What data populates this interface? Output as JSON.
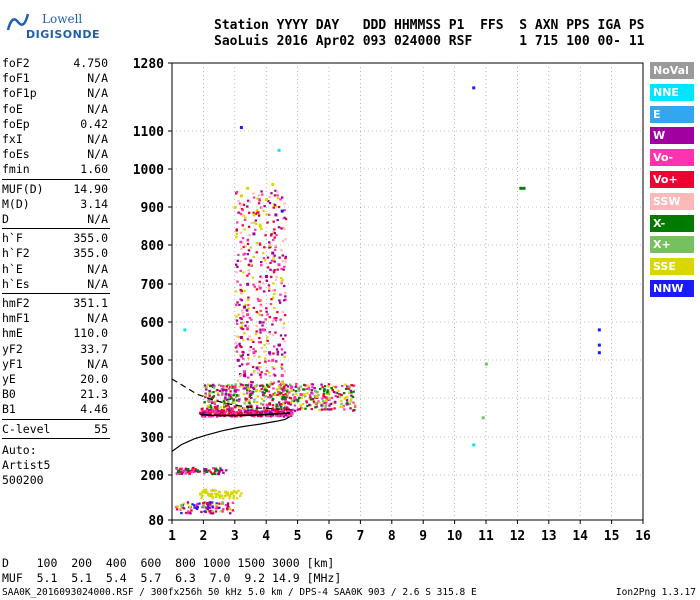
{
  "logo": {
    "line1": "Lowell",
    "line2": "DIGISONDE"
  },
  "header": {
    "line1": "Station YYYY DAY   DDD HHMMSS P1  FFS  S AXN PPS IGA PS",
    "line2": "SaoLuis 2016 Apr02 093 024000 RSF      1 715 100 00- 11"
  },
  "params": [
    {
      "key": "foF2",
      "value": "4.750"
    },
    {
      "key": "foF1",
      "value": "N/A"
    },
    {
      "key": "foF1p",
      "value": "N/A"
    },
    {
      "key": "foE",
      "value": "N/A"
    },
    {
      "key": "foEp",
      "value": "0.42"
    },
    {
      "key": "fxI",
      "value": "N/A"
    },
    {
      "key": "foEs",
      "value": "N/A"
    },
    {
      "key": "fmin",
      "value": "1.60"
    },
    {
      "key": "MUF(D)",
      "value": "14.90"
    },
    {
      "key": "M(D)",
      "value": "3.14"
    },
    {
      "key": "D",
      "value": "N/A"
    },
    {
      "key": "h`F",
      "value": "355.0"
    },
    {
      "key": "h`F2",
      "value": "355.0"
    },
    {
      "key": "h`E",
      "value": "N/A"
    },
    {
      "key": "h`Es",
      "value": "N/A"
    },
    {
      "key": "hmF2",
      "value": "351.1"
    },
    {
      "key": "hmF1",
      "value": "N/A"
    },
    {
      "key": "hmE",
      "value": "110.0"
    },
    {
      "key": "yF2",
      "value": "33.7"
    },
    {
      "key": "yF1",
      "value": "N/A"
    },
    {
      "key": "yE",
      "value": "20.0"
    },
    {
      "key": "B0",
      "value": "21.3"
    },
    {
      "key": "B1",
      "value": "4.46"
    },
    {
      "key": "C-level",
      "value": "55"
    }
  ],
  "auto": {
    "label": "Auto:",
    "artist": "Artist5",
    "version": "500200"
  },
  "legend": [
    {
      "label": "NoVal",
      "color": "#9a9a9a",
      "text": "#ffffff"
    },
    {
      "label": "NNE",
      "color": "#00e5ff",
      "text": "#ffffff"
    },
    {
      "label": "E",
      "color": "#33a6f0",
      "text": "#ffffff"
    },
    {
      "label": "W",
      "color": "#a000a0",
      "text": "#ffffff"
    },
    {
      "label": "Vo-",
      "color": "#ff33b0",
      "text": "#ffffff"
    },
    {
      "label": "Vo+",
      "color": "#ee0033",
      "text": "#ffffff"
    },
    {
      "label": "SSW",
      "color": "#ffb8b8",
      "text": "#ffffff"
    },
    {
      "label": "X-",
      "color": "#007a00",
      "text": "#ffffff"
    },
    {
      "label": "X+",
      "color": "#77c060",
      "text": "#ffffff"
    },
    {
      "label": "SSE",
      "color": "#d8d800",
      "text": "#ffffff"
    },
    {
      "label": "NNW",
      "color": "#1a1aff",
      "text": "#ffffff"
    }
  ],
  "mufTable": {
    "line1": "D    100  200  400  600  800 1000 1500 3000 [km]",
    "line2": "MUF  5.1  5.1  5.4  5.7  6.3  7.0  9.2 14.9 [MHz]"
  },
  "footer": {
    "left": "SAA0K_2016093024000.RSF / 300fx256h 50 kHz 5.0 km / DPS-4 SAA0K 903 / 2.6 S 315.8 E",
    "right": "Ion2Png 1.3.17"
  },
  "chart_data": {
    "type": "scatter",
    "xlabel": "",
    "ylabel": "",
    "xlim": [
      1,
      16
    ],
    "ylim": [
      80,
      1280
    ],
    "xticks": [
      1,
      2,
      3,
      4,
      5,
      6,
      7,
      8,
      9,
      10,
      11,
      12,
      13,
      14,
      15,
      16
    ],
    "yticks": [
      80,
      200,
      300,
      400,
      500,
      600,
      700,
      800,
      900,
      1000,
      1100,
      1280
    ],
    "series": [
      {
        "name": "Vo+",
        "color": "#ee0033",
        "x": [
          1.9,
          2.2,
          2.5,
          2.8,
          3.1,
          3.4,
          3.7,
          4.0,
          4.3,
          4.6,
          1.95,
          2.4,
          3.0,
          3.5,
          4.1,
          4.7
        ],
        "y": [
          362,
          360,
          358,
          358,
          360,
          362,
          365,
          368,
          370,
          372,
          372,
          375,
          378,
          380,
          385,
          388
        ]
      },
      {
        "name": "W",
        "color": "#a000a0",
        "x": [
          3.1,
          3.2,
          3.3,
          3.4,
          3.5,
          3.6,
          3.8,
          4.0,
          4.2,
          4.4,
          3.3,
          3.7,
          4.1,
          4.5,
          3.0,
          4.3
        ],
        "y": [
          500,
          560,
          640,
          700,
          760,
          830,
          600,
          720,
          780,
          540,
          460,
          480,
          520,
          440,
          420,
          880
        ]
      },
      {
        "name": "Vo-",
        "color": "#ff33b0",
        "x": [
          3.0,
          3.3,
          3.6,
          3.9,
          4.2,
          4.5,
          4.8,
          5.1,
          3.4,
          3.8,
          4.4,
          4.9
        ],
        "y": [
          430,
          470,
          520,
          580,
          500,
          460,
          430,
          410,
          620,
          690,
          750,
          400
        ]
      },
      {
        "name": "SSE",
        "color": "#d8d800",
        "x": [
          3.0,
          3.2,
          3.4,
          3.6,
          3.8,
          4.0,
          4.2,
          4.5,
          4.8,
          5.2,
          5.6,
          6.0,
          6.5,
          1.9,
          2.3,
          2.7
        ],
        "y": [
          900,
          930,
          950,
          880,
          850,
          920,
          960,
          440,
          420,
          410,
          405,
          400,
          400,
          150,
          160,
          155
        ]
      },
      {
        "name": "X-",
        "color": "#007a00",
        "x": [
          1.2,
          1.5,
          1.8,
          2.1,
          2.4,
          3.5,
          4.0,
          4.6,
          5.0,
          12.1,
          12.2
        ],
        "y": [
          210,
          215,
          212,
          210,
          214,
          410,
          420,
          400,
          395,
          950,
          950
        ]
      },
      {
        "name": "NNW",
        "color": "#1a1aff",
        "x": [
          3.2,
          4.5,
          14.6,
          14.6,
          14.6,
          10.6
        ],
        "y": [
          1110,
          890,
          580,
          540,
          520,
          1215
        ]
      },
      {
        "name": "NNE",
        "color": "#00e5ff",
        "x": [
          1.4,
          10.6,
          4.4
        ],
        "y": [
          580,
          280,
          1050
        ]
      },
      {
        "name": "X+",
        "color": "#77c060",
        "x": [
          1.3,
          2.0,
          2.6,
          10.9,
          11.0
        ],
        "y": [
          120,
          118,
          125,
          350,
          490
        ]
      }
    ],
    "curves": [
      {
        "name": "",
        "style": "solid",
        "x": [
          1.0,
          1.3,
          1.7,
          2.1,
          2.6,
          3.2,
          3.8,
          4.3,
          4.6,
          4.75
        ],
        "y": [
          262,
          280,
          295,
          305,
          316,
          326,
          333,
          340,
          345,
          352
        ]
      },
      {
        "name": "",
        "style": "dashed",
        "x": [
          1.0,
          1.4,
          1.8,
          2.3,
          2.8,
          3.3,
          3.8,
          4.3,
          4.75
        ],
        "y": [
          450,
          430,
          410,
          395,
          385,
          378,
          374,
          372,
          371
        ]
      },
      {
        "name": "",
        "style": "solid",
        "x": [
          1.9,
          2.2,
          2.6,
          3.0,
          3.5,
          4.0,
          4.5,
          4.75
        ],
        "y": [
          358,
          356,
          355,
          355,
          356,
          358,
          360,
          362
        ]
      }
    ]
  }
}
